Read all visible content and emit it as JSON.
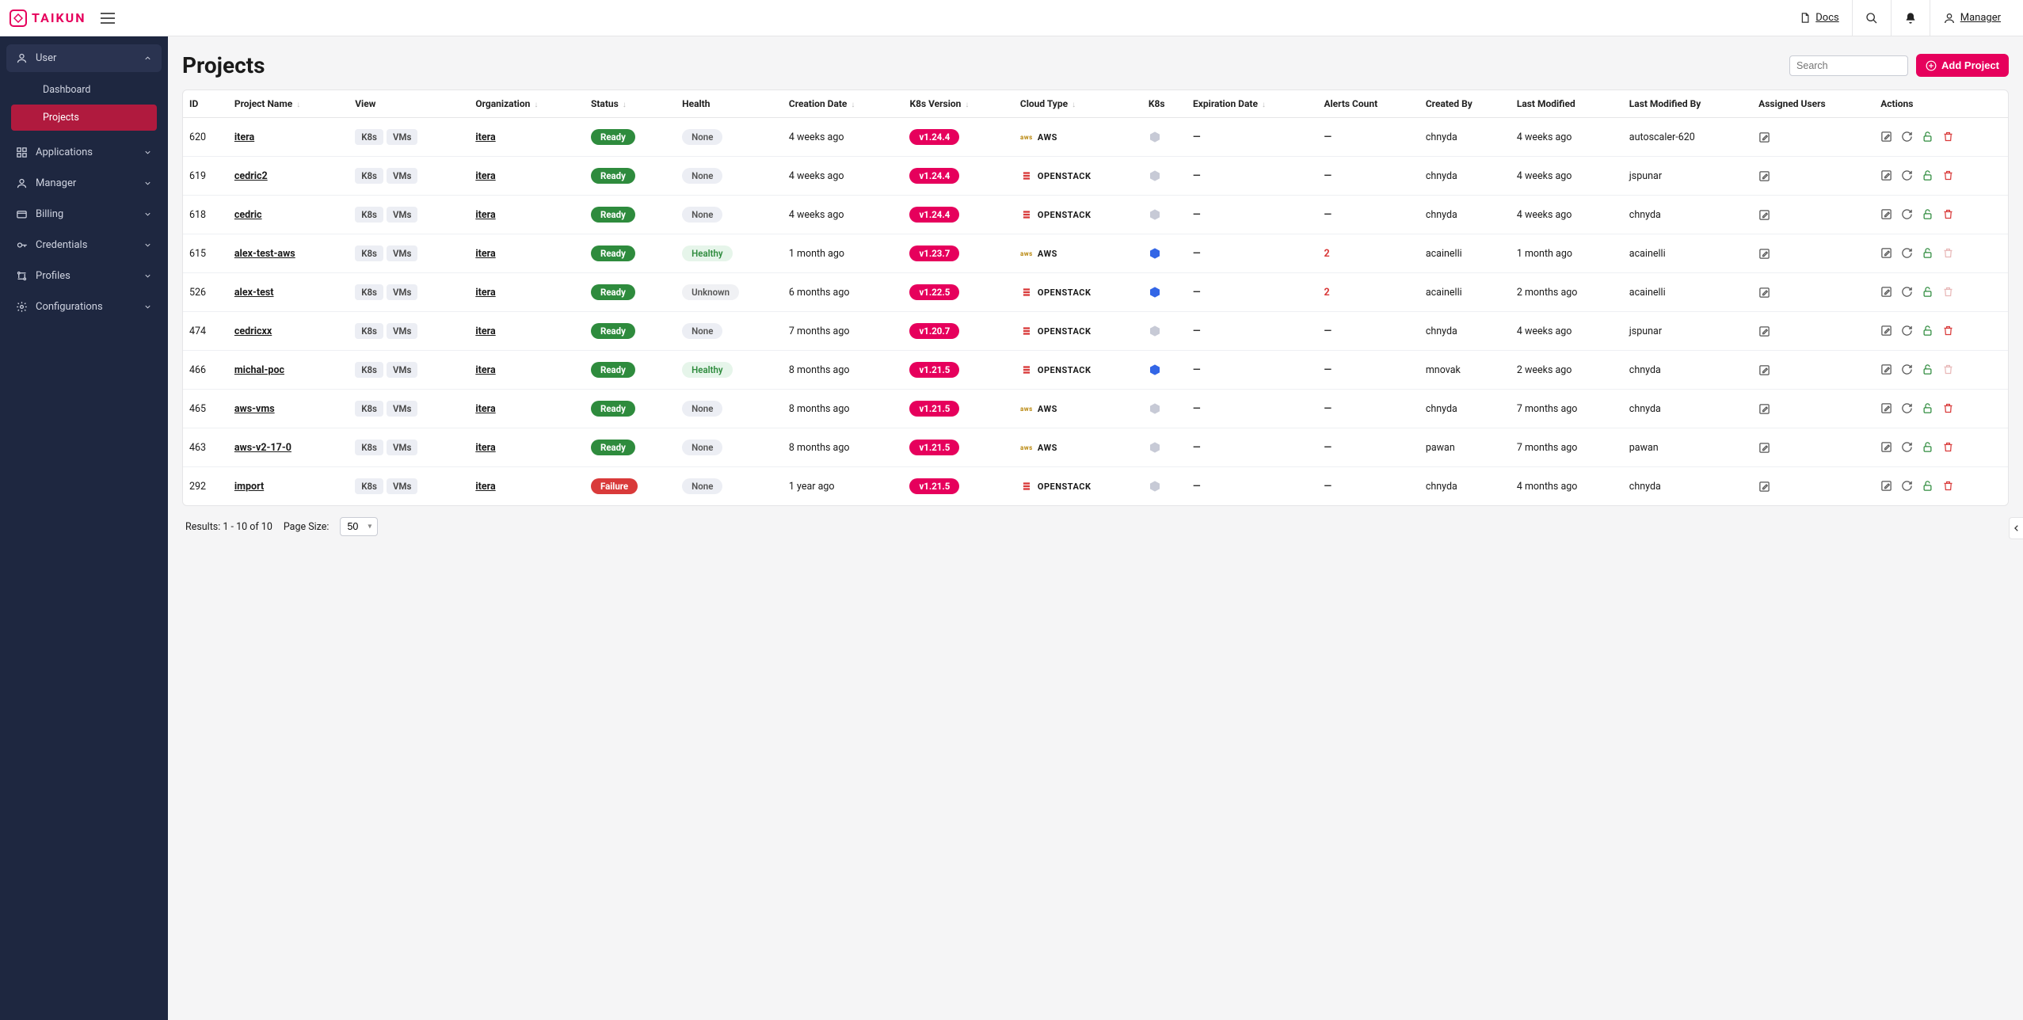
{
  "brand": "TAIKUN",
  "topbar": {
    "docs": "Docs",
    "user": "Manager"
  },
  "sidebar": {
    "sections": [
      {
        "label": "User",
        "open": true,
        "items": [
          {
            "label": "Dashboard",
            "active": false
          },
          {
            "label": "Projects",
            "active": true
          }
        ]
      },
      {
        "label": "Applications",
        "open": false
      },
      {
        "label": "Manager",
        "open": false
      },
      {
        "label": "Billing",
        "open": false
      },
      {
        "label": "Credentials",
        "open": false
      },
      {
        "label": "Profiles",
        "open": false
      },
      {
        "label": "Configurations",
        "open": false
      }
    ]
  },
  "page": {
    "title": "Projects",
    "search_placeholder": "Search",
    "add_button": "Add Project"
  },
  "columns": {
    "id": "ID",
    "project_name": "Project Name",
    "view": "View",
    "organization": "Organization",
    "status": "Status",
    "health": "Health",
    "creation_date": "Creation Date",
    "k8s_version": "K8s Version",
    "cloud_type": "Cloud Type",
    "k8s": "K8s",
    "expiration_date": "Expiration Date",
    "alerts_count": "Alerts Count",
    "created_by": "Created By",
    "last_modified": "Last Modified",
    "last_modified_by": "Last Modified By",
    "assigned_users": "Assigned Users",
    "actions": "Actions"
  },
  "view_chips": {
    "k8s": "K8s",
    "vms": "VMs"
  },
  "rows": [
    {
      "id": "620",
      "name": "itera",
      "org": "itera",
      "status": "Ready",
      "status_color": "green",
      "health": "None",
      "health_kind": "none",
      "created": "4 weeks ago",
      "ver": "v1.24.4",
      "cloud": "AWS",
      "k8s_active": false,
      "exp": "—",
      "alerts": "—",
      "created_by": "chnyda",
      "modified": "4 weeks ago",
      "modified_by": "autoscaler-620",
      "del_faded": false
    },
    {
      "id": "619",
      "name": "cedric2",
      "org": "itera",
      "status": "Ready",
      "status_color": "green",
      "health": "None",
      "health_kind": "none",
      "created": "4 weeks ago",
      "ver": "v1.24.4",
      "cloud": "OPENSTACK",
      "k8s_active": false,
      "exp": "—",
      "alerts": "—",
      "created_by": "chnyda",
      "modified": "4 weeks ago",
      "modified_by": "jspunar",
      "del_faded": false
    },
    {
      "id": "618",
      "name": "cedric",
      "org": "itera",
      "status": "Ready",
      "status_color": "green",
      "health": "None",
      "health_kind": "none",
      "created": "4 weeks ago",
      "ver": "v1.24.4",
      "cloud": "OPENSTACK",
      "k8s_active": false,
      "exp": "—",
      "alerts": "—",
      "created_by": "chnyda",
      "modified": "4 weeks ago",
      "modified_by": "chnyda",
      "del_faded": false
    },
    {
      "id": "615",
      "name": "alex-test-aws",
      "org": "itera",
      "status": "Ready",
      "status_color": "green",
      "health": "Healthy",
      "health_kind": "healthy",
      "created": "1 month ago",
      "ver": "v1.23.7",
      "cloud": "AWS",
      "k8s_active": true,
      "exp": "—",
      "alerts": "2",
      "created_by": "acainelli",
      "modified": "1 month ago",
      "modified_by": "acainelli",
      "del_faded": true
    },
    {
      "id": "526",
      "name": "alex-test",
      "org": "itera",
      "status": "Ready",
      "status_color": "green",
      "health": "Unknown",
      "health_kind": "unknown",
      "created": "6 months ago",
      "ver": "v1.22.5",
      "cloud": "OPENSTACK",
      "k8s_active": true,
      "exp": "—",
      "alerts": "2",
      "created_by": "acainelli",
      "modified": "2 months ago",
      "modified_by": "acainelli",
      "del_faded": true
    },
    {
      "id": "474",
      "name": "cedricxx",
      "org": "itera",
      "status": "Ready",
      "status_color": "green",
      "health": "None",
      "health_kind": "none",
      "created": "7 months ago",
      "ver": "v1.20.7",
      "cloud": "OPENSTACK",
      "k8s_active": false,
      "exp": "—",
      "alerts": "—",
      "created_by": "chnyda",
      "modified": "4 weeks ago",
      "modified_by": "jspunar",
      "del_faded": false
    },
    {
      "id": "466",
      "name": "michal-poc",
      "org": "itera",
      "status": "Ready",
      "status_color": "green",
      "health": "Healthy",
      "health_kind": "healthy",
      "created": "8 months ago",
      "ver": "v1.21.5",
      "cloud": "OPENSTACK",
      "k8s_active": true,
      "exp": "—",
      "alerts": "—",
      "created_by": "mnovak",
      "modified": "2 weeks ago",
      "modified_by": "chnyda",
      "del_faded": true
    },
    {
      "id": "465",
      "name": "aws-vms",
      "org": "itera",
      "status": "Ready",
      "status_color": "green",
      "health": "None",
      "health_kind": "none",
      "created": "8 months ago",
      "ver": "v1.21.5",
      "cloud": "AWS",
      "k8s_active": false,
      "exp": "—",
      "alerts": "—",
      "created_by": "chnyda",
      "modified": "7 months ago",
      "modified_by": "chnyda",
      "del_faded": false
    },
    {
      "id": "463",
      "name": "aws-v2-17-0",
      "org": "itera",
      "status": "Ready",
      "status_color": "green",
      "health": "None",
      "health_kind": "none",
      "created": "8 months ago",
      "ver": "v1.21.5",
      "cloud": "AWS",
      "k8s_active": false,
      "exp": "—",
      "alerts": "—",
      "created_by": "pawan",
      "modified": "7 months ago",
      "modified_by": "pawan",
      "del_faded": false
    },
    {
      "id": "292",
      "name": "import",
      "org": "itera",
      "status": "Failure",
      "status_color": "red",
      "health": "None",
      "health_kind": "none",
      "created": "1 year ago",
      "ver": "v1.21.5",
      "cloud": "OPENSTACK",
      "k8s_active": false,
      "exp": "—",
      "alerts": "—",
      "created_by": "chnyda",
      "modified": "4 months ago",
      "modified_by": "chnyda",
      "del_faded": false
    }
  ],
  "footer": {
    "results": "Results: 1 - 10 of 10",
    "page_size_label": "Page Size:",
    "page_size_value": "50"
  }
}
